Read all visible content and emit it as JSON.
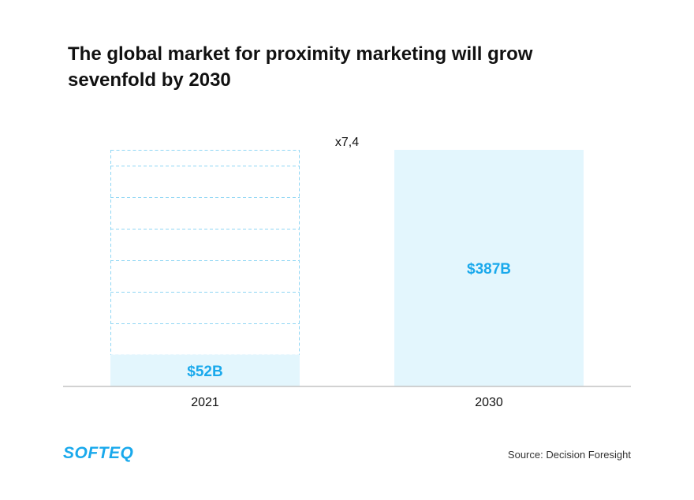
{
  "title": {
    "line1": "The global market for proximity marketing will grow",
    "line2": "sevenfold by 2030"
  },
  "chart_data": {
    "type": "bar",
    "categories": [
      "2021",
      "2030"
    ],
    "values": [
      52,
      387
    ],
    "value_labels": [
      "$52B",
      "$387B"
    ],
    "multiplier_label": "x7,4",
    "ylim": [
      0,
      387
    ],
    "unit": "$B",
    "xlabel": "",
    "ylabel": ""
  },
  "logo": {
    "text": "SOFTEQ"
  },
  "source": {
    "text": "Source: Decision Foresight"
  },
  "colors": {
    "bar_fill": "#e3f6fd",
    "value_text": "#1aa9ec",
    "dashed_outline": "#8fd6f4",
    "axis": "#c4c4c4",
    "title": "#111111"
  }
}
